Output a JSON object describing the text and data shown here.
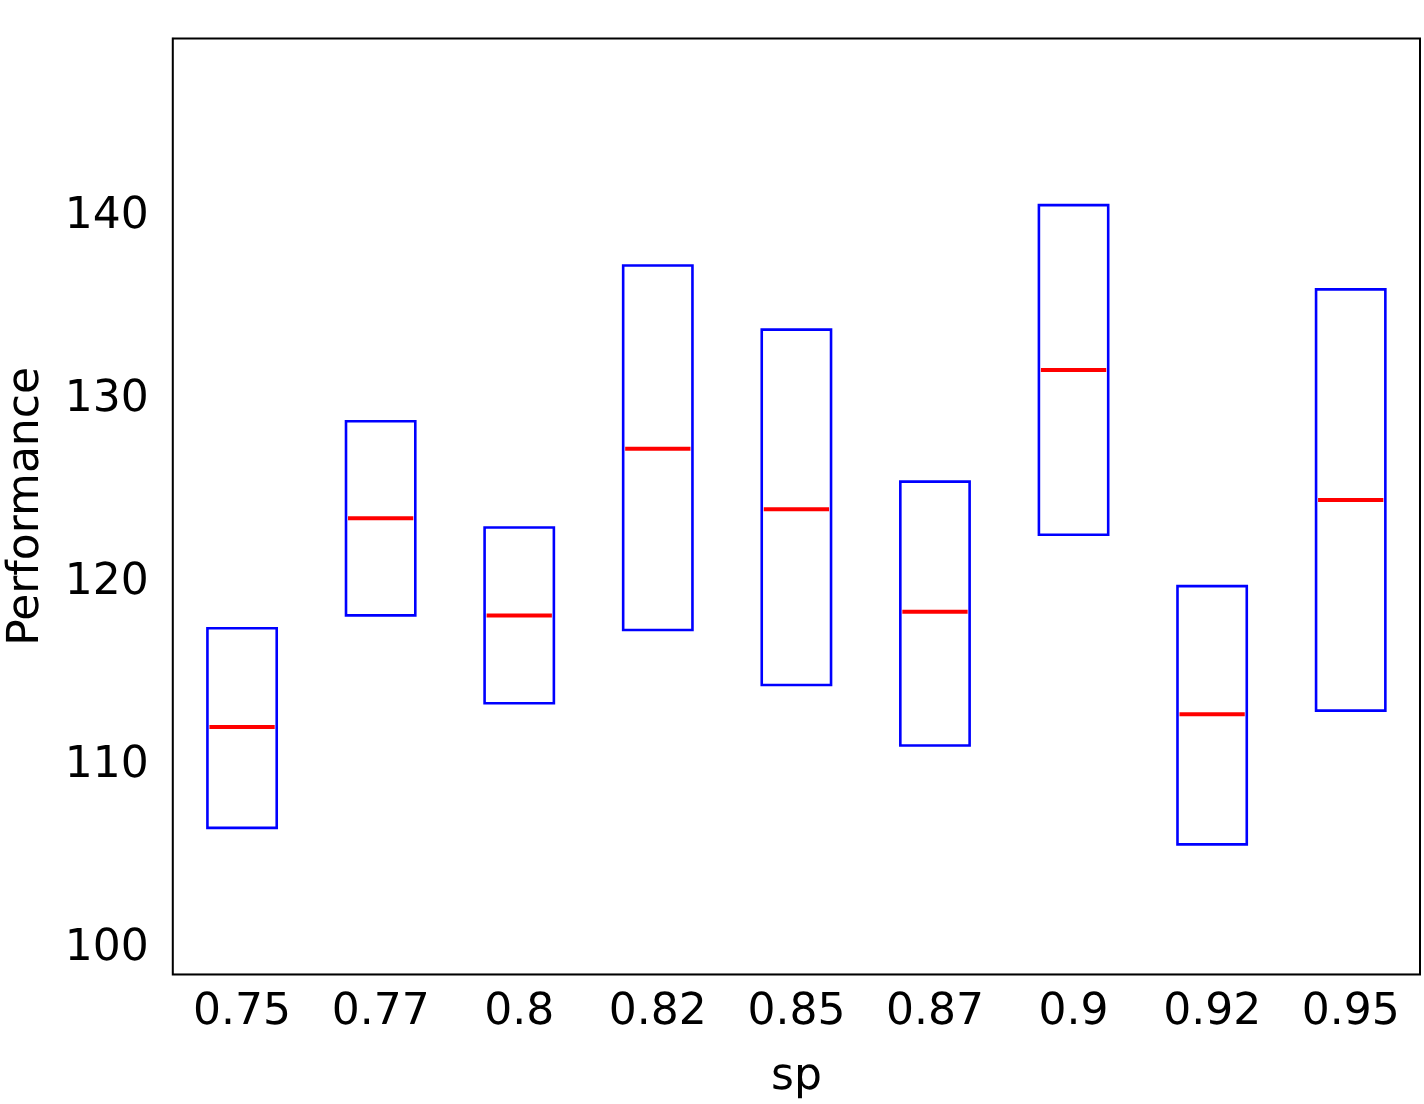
{
  "chart_data": {
    "type": "box",
    "xlabel": "sp",
    "ylabel": "Performance",
    "categories": [
      "0.75",
      "0.77",
      "0.8",
      "0.82",
      "0.85",
      "0.87",
      "0.9",
      "0.92",
      "0.95"
    ],
    "color": "#0000ff",
    "boxes": [
      {
        "low": 106.6,
        "q1": 106.6,
        "median": 112.1,
        "q3": 117.5,
        "high": 117.5
      },
      {
        "low": 118.2,
        "q1": 118.2,
        "median": 123.5,
        "q3": 128.8,
        "high": 128.8
      },
      {
        "low": 113.4,
        "q1": 113.4,
        "median": 118.2,
        "q3": 123.0,
        "high": 123.0
      },
      {
        "low": 117.4,
        "q1": 117.4,
        "median": 127.3,
        "q3": 137.3,
        "high": 137.3
      },
      {
        "low": 114.4,
        "q1": 114.4,
        "median": 124.0,
        "q3": 133.8,
        "high": 133.8
      },
      {
        "low": 111.1,
        "q1": 111.1,
        "median": 118.4,
        "q3": 125.5,
        "high": 125.5
      },
      {
        "low": 122.6,
        "q1": 122.6,
        "median": 131.6,
        "q3": 140.6,
        "high": 140.6
      },
      {
        "low": 105.7,
        "q1": 105.7,
        "median": 112.8,
        "q3": 119.8,
        "high": 119.8
      },
      {
        "low": 113.0,
        "q1": 113.0,
        "median": 124.5,
        "q3": 136.0,
        "high": 136.0
      }
    ],
    "ylim": [
      98.6,
      149.7
    ],
    "yticks": [
      100,
      110,
      120,
      130,
      140
    ],
    "grid": false,
    "legend": false
  }
}
